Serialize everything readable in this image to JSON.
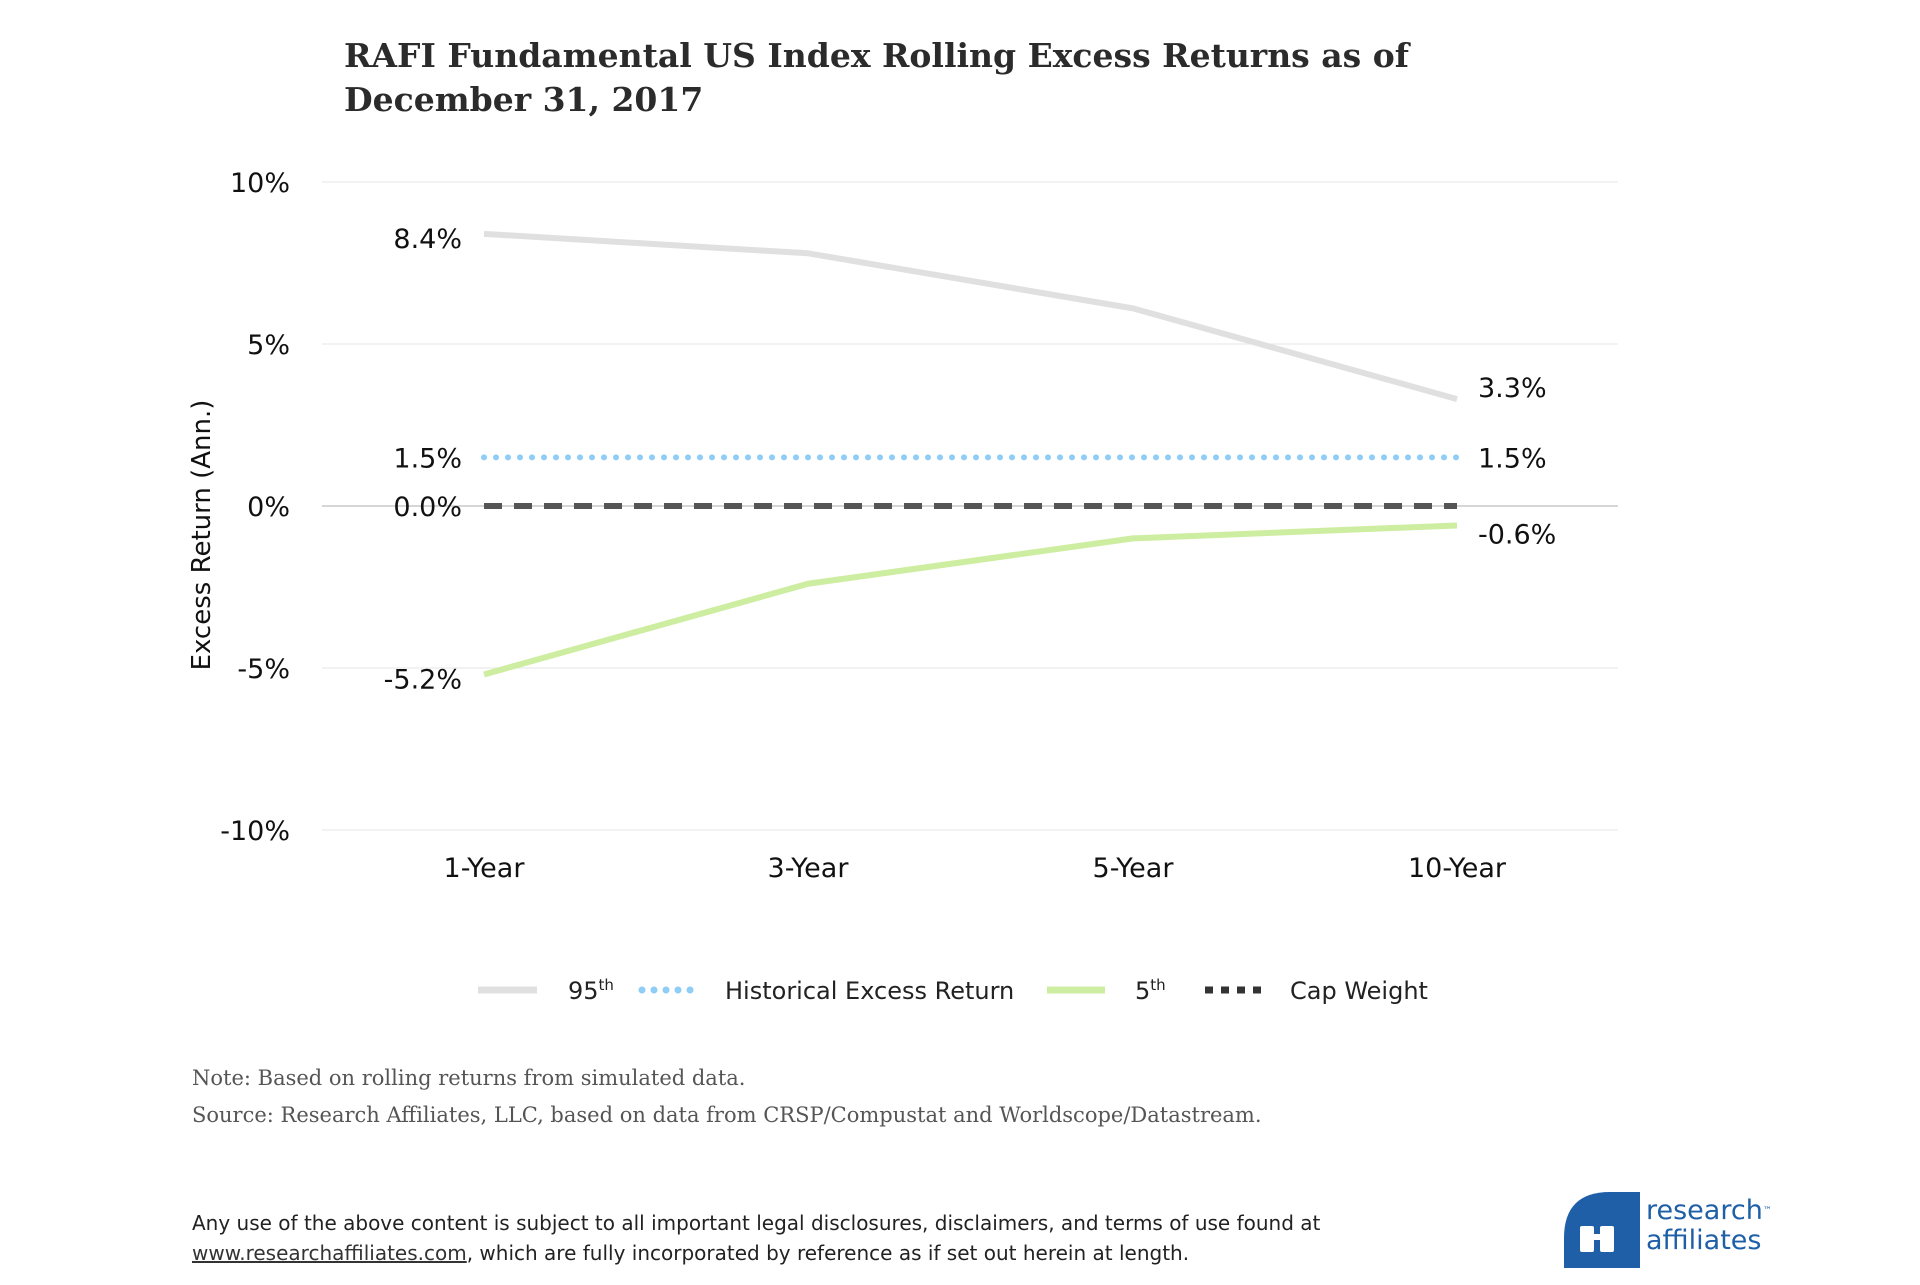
{
  "title_line1": "RAFI Fundamental US Index Rolling Excess Returns as of",
  "title_line2": "December 31, 2017",
  "chart_data": {
    "type": "line",
    "categories": [
      "1-Year",
      "3-Year",
      "5-Year",
      "10-Year"
    ],
    "ylabel": "Excess Return (Ann.)",
    "ylim": [
      -10,
      10
    ],
    "yticks": [
      10,
      5,
      0,
      -5,
      -10
    ],
    "ytick_labels": [
      "10%",
      "5%",
      "0%",
      "-5%",
      "-10%"
    ],
    "grid": true,
    "legend_position": "bottom",
    "series": [
      {
        "name": "95",
        "name_sup": "th",
        "values": [
          8.4,
          7.8,
          6.1,
          3.3
        ],
        "color": "#e0e0e0",
        "style": "solid",
        "start_label": "8.4%",
        "end_label": "3.3%"
      },
      {
        "name": "Historical Excess Return",
        "values": [
          1.5,
          1.5,
          1.5,
          1.5
        ],
        "color": "#8ecdf5",
        "style": "dotted",
        "start_label": "1.5%",
        "end_label": "1.5%"
      },
      {
        "name": "5",
        "name_sup": "th",
        "values": [
          -5.2,
          -2.4,
          -1.0,
          -0.6
        ],
        "color": "#cdeda0",
        "style": "solid",
        "start_label": "-5.2%",
        "end_label": "-0.6%"
      },
      {
        "name": "Cap Weight",
        "values": [
          0.0,
          0.0,
          0.0,
          0.0
        ],
        "color": "#555555",
        "style": "dashed",
        "start_label": "0.0%",
        "end_label": ""
      }
    ]
  },
  "notes": {
    "note": "Note: Based on rolling returns from simulated data.",
    "source": "Source:  Research Affiliates, LLC, based on data from CRSP/Compustat and Worldscope/Datastream."
  },
  "legal": {
    "line1": "Any use of the above content is subject to all important legal disclosures, disclaimers, and terms of use found at",
    "link": "www.researchaffiliates.com",
    "line2_rest": ", which are fully incorporated by reference as if set out herein at length."
  },
  "logo": {
    "line1": "research",
    "tm": "™",
    "line2": "affiliates",
    "brand_color": "#1f5fa8"
  }
}
